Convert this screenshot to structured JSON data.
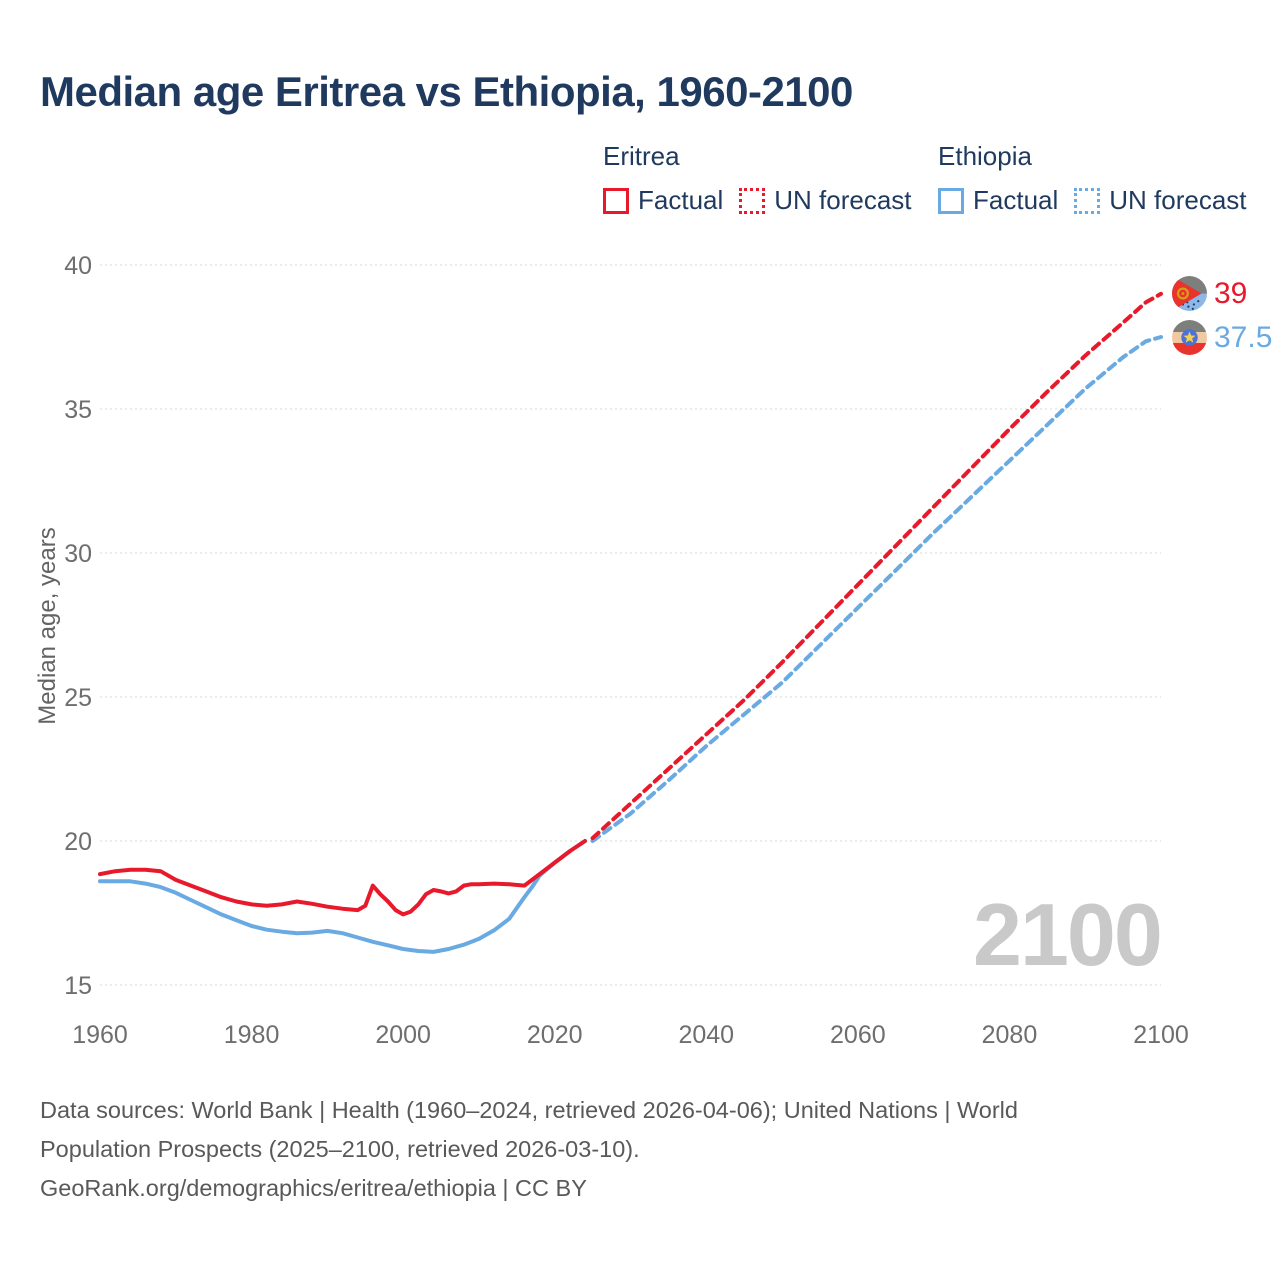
{
  "title": "Median age Eritrea vs Ethiopia, 1960-2100",
  "legend": {
    "eritrea": {
      "label": "Eritrea",
      "factual_label": "Factual",
      "forecast_label": "UN forecast"
    },
    "ethiopia": {
      "label": "Ethiopia",
      "factual_label": "Factual",
      "forecast_label": "UN forecast"
    }
  },
  "colors": {
    "eritrea": "#e8192b",
    "ethiopia": "#6aaae2",
    "title_navy": "#1f3a5e",
    "axis_gray": "#6e6e6e",
    "gridline_gray": "#d8d8d8",
    "watermark_gray": "#c9c9c9"
  },
  "icons": {
    "eritrea": "eritrea-flag-icon",
    "ethiopia": "ethiopia-flag-icon"
  },
  "watermark": "2100",
  "end_labels": {
    "eritrea": {
      "value": "39"
    },
    "ethiopia": {
      "value": "37.5"
    }
  },
  "footer": {
    "lines": [
      "Data sources: World Bank | Health (1960–2024, retrieved 2026-04-06); United Nations | World",
      "Population Prospects (2025–2100, retrieved 2026-03-10).",
      "GeoRank.org/demographics/eritrea/ethiopia | CC BY"
    ]
  },
  "chart_data": {
    "type": "line",
    "title": "Median age Eritrea vs Ethiopia, 1960-2100",
    "xlabel": "",
    "ylabel": "Median age, years",
    "xlim": [
      1960,
      2100
    ],
    "ylim": [
      15,
      40
    ],
    "x_ticks": [
      1960,
      1980,
      2000,
      2020,
      2040,
      2060,
      2080,
      2100
    ],
    "y_ticks": [
      15,
      20,
      25,
      30,
      35,
      40
    ],
    "grid": true,
    "legend_position": "top-right",
    "series": [
      {
        "id": "ethiopia-factual",
        "name": "Ethiopia Factual",
        "color": "#6aaae2",
        "dashed": false,
        "points": [
          [
            1960,
            18.6
          ],
          [
            1962,
            18.6
          ],
          [
            1964,
            18.6
          ],
          [
            1966,
            18.52
          ],
          [
            1968,
            18.4
          ],
          [
            1970,
            18.2
          ],
          [
            1972,
            17.95
          ],
          [
            1974,
            17.7
          ],
          [
            1976,
            17.45
          ],
          [
            1978,
            17.25
          ],
          [
            1980,
            17.05
          ],
          [
            1982,
            16.92
          ],
          [
            1984,
            16.85
          ],
          [
            1986,
            16.8
          ],
          [
            1988,
            16.82
          ],
          [
            1990,
            16.88
          ],
          [
            1992,
            16.8
          ],
          [
            1994,
            16.65
          ],
          [
            1996,
            16.5
          ],
          [
            1998,
            16.38
          ],
          [
            2000,
            16.25
          ],
          [
            2002,
            16.18
          ],
          [
            2004,
            16.15
          ],
          [
            2006,
            16.25
          ],
          [
            2008,
            16.4
          ],
          [
            2010,
            16.6
          ],
          [
            2012,
            16.9
          ],
          [
            2014,
            17.3
          ],
          [
            2016,
            18.05
          ],
          [
            2017,
            18.4
          ],
          [
            2018,
            18.8
          ],
          [
            2020,
            19.25
          ],
          [
            2022,
            19.65
          ],
          [
            2024,
            20.0
          ]
        ]
      },
      {
        "id": "ethiopia-forecast",
        "name": "Ethiopia UN forecast",
        "color": "#6aaae2",
        "dashed": true,
        "points": [
          [
            2025,
            20.0
          ],
          [
            2030,
            20.95
          ],
          [
            2035,
            22.1
          ],
          [
            2040,
            23.3
          ],
          [
            2045,
            24.4
          ],
          [
            2050,
            25.5
          ],
          [
            2055,
            26.8
          ],
          [
            2060,
            28.1
          ],
          [
            2065,
            29.4
          ],
          [
            2070,
            30.7
          ],
          [
            2075,
            31.95
          ],
          [
            2080,
            33.2
          ],
          [
            2085,
            34.45
          ],
          [
            2090,
            35.7
          ],
          [
            2095,
            36.8
          ],
          [
            2098,
            37.35
          ],
          [
            2100,
            37.5
          ]
        ]
      },
      {
        "id": "eritrea-factual",
        "name": "Eritrea Factual",
        "color": "#e8192b",
        "dashed": false,
        "points": [
          [
            1960,
            18.85
          ],
          [
            1962,
            18.95
          ],
          [
            1964,
            19.0
          ],
          [
            1966,
            19.0
          ],
          [
            1968,
            18.95
          ],
          [
            1970,
            18.65
          ],
          [
            1972,
            18.45
          ],
          [
            1974,
            18.25
          ],
          [
            1976,
            18.05
          ],
          [
            1978,
            17.9
          ],
          [
            1980,
            17.8
          ],
          [
            1982,
            17.75
          ],
          [
            1984,
            17.8
          ],
          [
            1986,
            17.9
          ],
          [
            1988,
            17.82
          ],
          [
            1990,
            17.72
          ],
          [
            1992,
            17.65
          ],
          [
            1994,
            17.6
          ],
          [
            1995,
            17.75
          ],
          [
            1996,
            18.45
          ],
          [
            1997,
            18.15
          ],
          [
            1998,
            17.9
          ],
          [
            1999,
            17.6
          ],
          [
            2000,
            17.45
          ],
          [
            2001,
            17.55
          ],
          [
            2002,
            17.8
          ],
          [
            2003,
            18.15
          ],
          [
            2004,
            18.3
          ],
          [
            2005,
            18.25
          ],
          [
            2006,
            18.18
          ],
          [
            2007,
            18.25
          ],
          [
            2008,
            18.45
          ],
          [
            2009,
            18.5
          ],
          [
            2010,
            18.5
          ],
          [
            2012,
            18.52
          ],
          [
            2014,
            18.5
          ],
          [
            2016,
            18.45
          ],
          [
            2018,
            18.85
          ],
          [
            2020,
            19.25
          ],
          [
            2022,
            19.65
          ],
          [
            2024,
            20.0
          ]
        ]
      },
      {
        "id": "eritrea-forecast",
        "name": "Eritrea UN forecast",
        "color": "#e8192b",
        "dashed": true,
        "points": [
          [
            2025,
            20.1
          ],
          [
            2030,
            21.3
          ],
          [
            2035,
            22.5
          ],
          [
            2040,
            23.7
          ],
          [
            2045,
            24.9
          ],
          [
            2050,
            26.2
          ],
          [
            2055,
            27.55
          ],
          [
            2060,
            28.9
          ],
          [
            2065,
            30.25
          ],
          [
            2070,
            31.6
          ],
          [
            2075,
            32.95
          ],
          [
            2080,
            34.3
          ],
          [
            2085,
            35.6
          ],
          [
            2090,
            36.85
          ],
          [
            2095,
            38.0
          ],
          [
            2098,
            38.7
          ],
          [
            2100,
            39.0
          ]
        ]
      }
    ]
  }
}
